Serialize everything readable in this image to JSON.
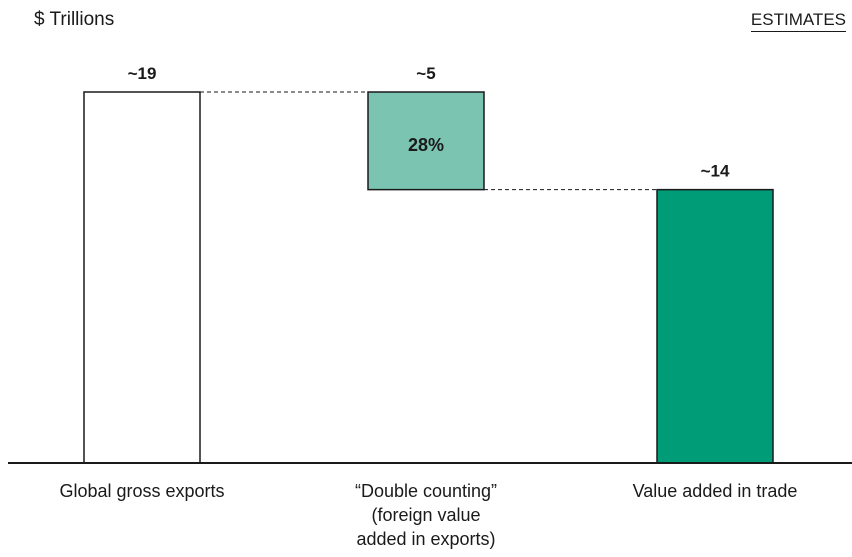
{
  "header": {
    "unit_label": "$ Trillions",
    "estimates_tag": "ESTIMATES"
  },
  "colors": {
    "gross_fill": "#ffffff",
    "double_counting_fill": "#7cc4b2",
    "value_added_fill": "#009b77",
    "outline": "#1a1a1a"
  },
  "chart_data": {
    "type": "bar",
    "subtype": "waterfall",
    "ylabel": "$ Trillions",
    "ylim": [
      0,
      19
    ],
    "categories": [
      "Global gross exports",
      "“Double counting”\n(foreign value\nadded in exports)",
      "Value added in trade"
    ],
    "bars": [
      {
        "category": "Global gross exports",
        "start": 0,
        "end": 19,
        "value_label": "~19",
        "inner_label": ""
      },
      {
        "category": "“Double counting” (foreign value added in exports)",
        "start": 14,
        "end": 19,
        "value_label": "~5",
        "inner_label": "28%"
      },
      {
        "category": "Value added in trade",
        "start": 0,
        "end": 14,
        "value_label": "~14",
        "inner_label": ""
      }
    ],
    "grid": false,
    "legend": "none"
  }
}
